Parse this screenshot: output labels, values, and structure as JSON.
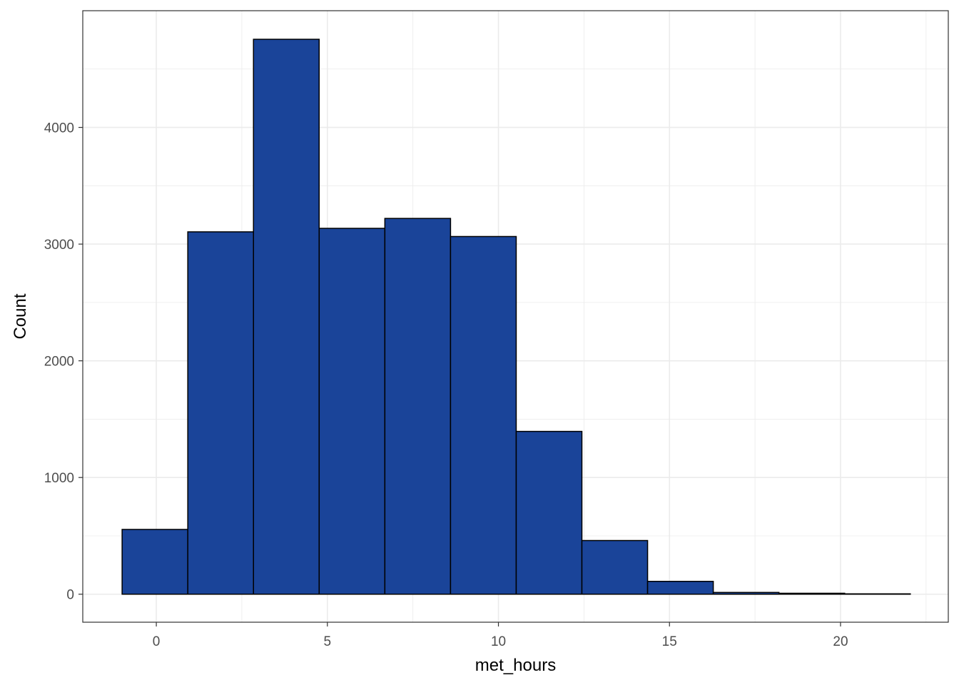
{
  "chart_data": {
    "type": "bar",
    "subtype": "histogram",
    "xlabel": "met_hours",
    "ylabel": "Count",
    "xlim": [
      -2.15,
      23.15
    ],
    "ylim": [
      -240,
      5000
    ],
    "xticks": [
      0,
      5,
      10,
      15,
      20
    ],
    "yticks": [
      0,
      1000,
      2000,
      3000,
      4000
    ],
    "grid": true,
    "bins": [
      {
        "x0": -1.0,
        "x1": 0.92,
        "count": 555
      },
      {
        "x0": 0.92,
        "x1": 2.84,
        "count": 3105
      },
      {
        "x0": 2.84,
        "x1": 4.76,
        "count": 4755
      },
      {
        "x0": 4.76,
        "x1": 6.68,
        "count": 3135
      },
      {
        "x0": 6.68,
        "x1": 8.6,
        "count": 3220
      },
      {
        "x0": 8.6,
        "x1": 10.52,
        "count": 3065
      },
      {
        "x0": 10.52,
        "x1": 12.44,
        "count": 1395
      },
      {
        "x0": 12.44,
        "x1": 14.36,
        "count": 460
      },
      {
        "x0": 14.36,
        "x1": 16.28,
        "count": 110
      },
      {
        "x0": 16.28,
        "x1": 18.2,
        "count": 15
      },
      {
        "x0": 18.2,
        "x1": 20.12,
        "count": 8
      },
      {
        "x0": 20.12,
        "x1": 22.04,
        "count": 3
      }
    ],
    "colors": {
      "fill": "#1a4499",
      "outline": "#000000",
      "grid": "#ebebeb",
      "panel_border": "#333333"
    }
  }
}
